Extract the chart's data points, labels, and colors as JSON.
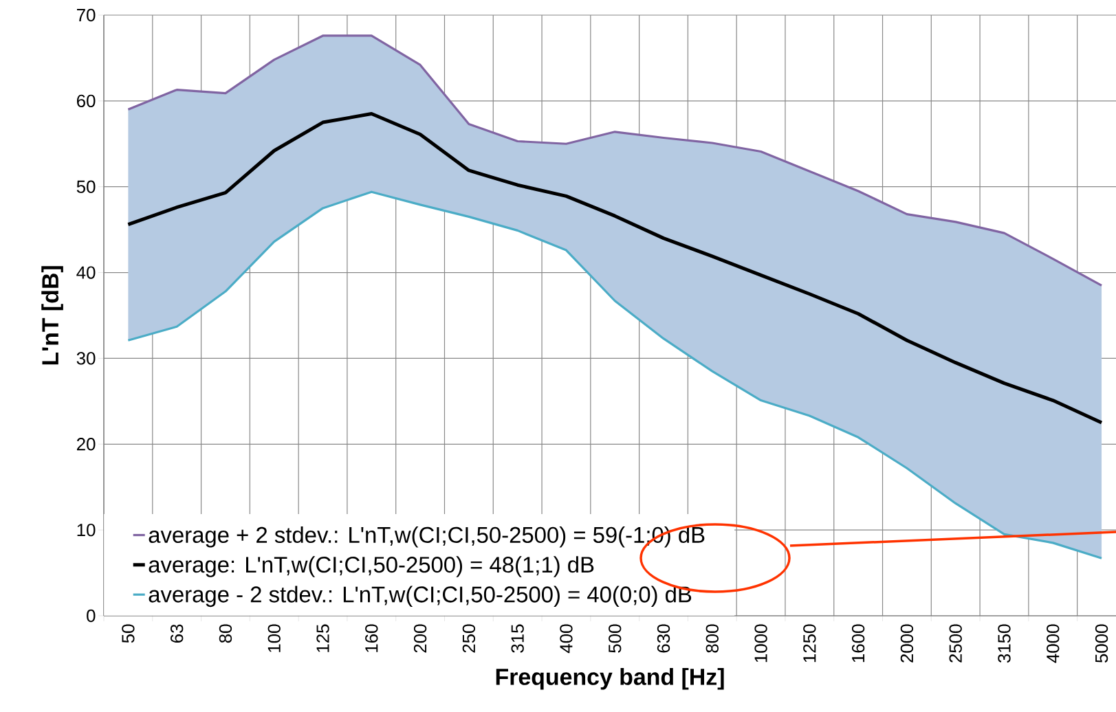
{
  "chart_data": {
    "type": "line",
    "xlabel": "Frequency band [Hz]",
    "ylabel": "L'nT [dB]",
    "categories": [
      "50",
      "63",
      "80",
      "100",
      "125",
      "160",
      "200",
      "250",
      "315",
      "400",
      "500",
      "630",
      "800",
      "1000",
      "1250",
      "1600",
      "2000",
      "2500",
      "3150",
      "4000",
      "5000"
    ],
    "ylim": [
      0,
      70
    ],
    "yticks": [
      0,
      10,
      20,
      30,
      40,
      50,
      60,
      70
    ],
    "grid": true,
    "legend": "bottom left",
    "marker": "none",
    "line_style": "solid",
    "series": [
      {
        "name": "average + 2 stdev.: L'nT,w(CI;CI,50-2500) = 59(-1;0) dB",
        "color": "#8064a2",
        "values": [
          59.0,
          61.3,
          60.9,
          64.8,
          67.6,
          67.6,
          64.2,
          57.3,
          55.3,
          55.0,
          56.4,
          55.7,
          55.1,
          54.1,
          51.8,
          49.5,
          46.8,
          45.9,
          44.6,
          41.6,
          38.5
        ]
      },
      {
        "name": "average: L'nT,w(CI;CI,50-2500) = 48(1;1) dB",
        "color": "#000000",
        "values": [
          45.6,
          47.6,
          49.3,
          54.2,
          57.5,
          58.5,
          56.1,
          51.9,
          50.2,
          48.9,
          46.6,
          44.0,
          41.9,
          39.7,
          37.5,
          35.2,
          32.1,
          29.5,
          27.1,
          25.1,
          22.5
        ],
        "lower": [
          32.1,
          33.7,
          37.8,
          43.6,
          47.5,
          49.4,
          47.9,
          46.5,
          44.9,
          42.6,
          36.7,
          32.3,
          28.5,
          25.1,
          23.3,
          20.8,
          17.2,
          13.1,
          9.5,
          8.5,
          6.7
        ],
        "upper": [
          59.0,
          61.3,
          60.9,
          64.8,
          67.6,
          67.6,
          64.2,
          57.3,
          55.3,
          55.0,
          56.4,
          55.7,
          55.1,
          54.1,
          51.8,
          49.5,
          46.8,
          45.9,
          44.6,
          41.6,
          38.5
        ]
      },
      {
        "name": "average - 2 stdev.: L'nT,w(CI;CI,50-2500) = 40(0;0) dB",
        "color": "#4bacc6",
        "values": [
          32.1,
          33.7,
          37.8,
          43.6,
          47.5,
          49.4,
          47.9,
          46.5,
          44.9,
          42.6,
          36.7,
          32.3,
          28.5,
          25.1,
          23.3,
          20.8,
          17.2,
          13.1,
          9.5,
          8.5,
          6.7
        ]
      }
    ]
  }
}
